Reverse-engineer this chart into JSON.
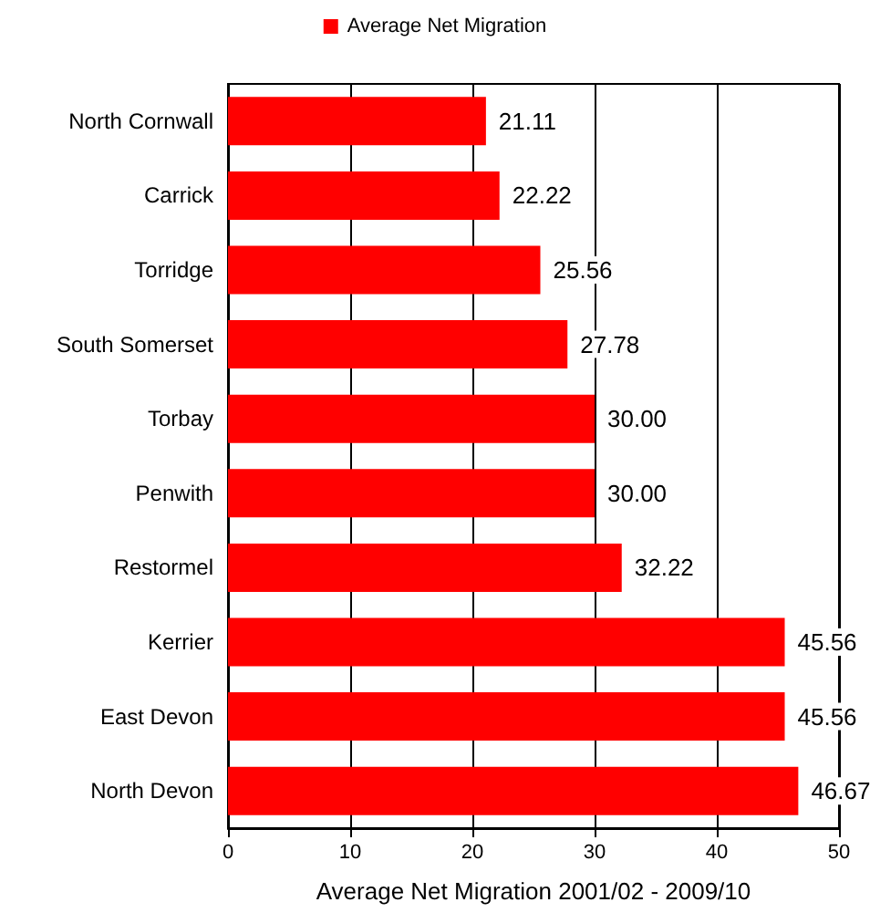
{
  "chart_data": {
    "type": "bar",
    "orientation": "horizontal",
    "categories": [
      "North Cornwall",
      "Carrick",
      "Torridge",
      "South Somerset",
      "Torbay",
      "Penwith",
      "Restormel",
      "Kerrier",
      "East Devon",
      "North Devon"
    ],
    "series": [
      {
        "name": "Average Net Migration",
        "color": "#ff0000",
        "values": [
          21.11,
          22.22,
          25.56,
          27.78,
          30.0,
          30.0,
          32.22,
          45.56,
          45.56,
          46.67
        ],
        "value_labels": [
          "21.11",
          "22.22",
          "25.56",
          "27.78",
          "30.00",
          "30.00",
          "32.22",
          "45.56",
          "45.56",
          "46.67"
        ]
      }
    ],
    "xlabel": "Average Net Migration 2001/02 - 2009/10",
    "xlim": [
      0,
      50
    ],
    "xticks": [
      0,
      10,
      20,
      30,
      40,
      50
    ],
    "grid": "x",
    "legend": "top"
  }
}
